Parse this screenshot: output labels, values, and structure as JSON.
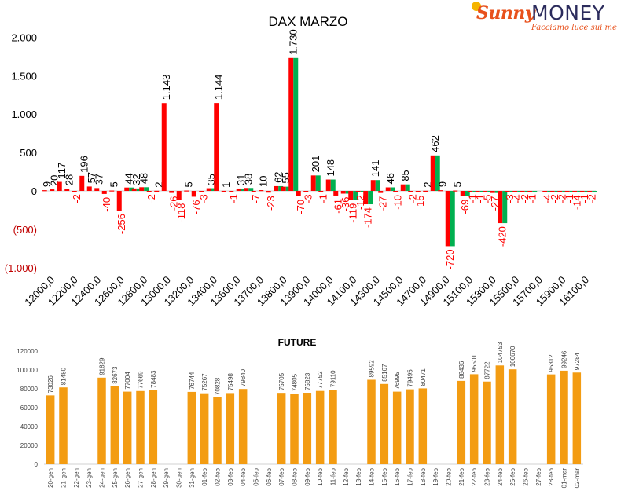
{
  "logo": {
    "brand_script": "Sunny",
    "brand_word": "MONEY",
    "tagline": "Facciamo luce sui mercati"
  },
  "colors": {
    "positive": "#00b050",
    "negative": "#ff0000",
    "future_bar": "#f39c12",
    "neg_axis_label": "#c00000"
  },
  "chart_data": [
    {
      "type": "bar",
      "title": "DAX MARZO",
      "ylim": [
        -1000,
        2000
      ],
      "yticks": [
        {
          "v": 2000,
          "label": "2.000",
          "color": "#000000"
        },
        {
          "v": 1500,
          "label": "1.500",
          "color": "#000000"
        },
        {
          "v": 1000,
          "label": "1.000",
          "color": "#000000"
        },
        {
          "v": 500,
          "label": "500",
          "color": "#000000"
        },
        {
          "v": 0,
          "label": "0",
          "color": "#000000"
        },
        {
          "v": -500,
          "label": "(500)",
          "color": "#c00000"
        },
        {
          "v": -1000,
          "label": "(1.000)",
          "color": "#c00000"
        }
      ],
      "xtick_labels": [
        "12000,0",
        "12200,0",
        "12400,0",
        "12600,0",
        "12800,0",
        "13000,0",
        "13200,0",
        "13400,0",
        "13600,0",
        "13700,0",
        "13800,0",
        "13900,0",
        "14000,0",
        "14100,0",
        "14300,0",
        "14500,0",
        "14700,0",
        "14900,0",
        "15100,0",
        "15300,0",
        "15500,0",
        "15700,0",
        "15900,0",
        "16100,0"
      ],
      "series": [
        {
          "values": [
            9,
            20,
            117,
            28,
            -2,
            196,
            57,
            37,
            -40,
            5,
            -256,
            44,
            32,
            48,
            -2,
            2,
            1143,
            -26,
            -118,
            5,
            -76,
            -3,
            35,
            1144,
            1,
            -1,
            31,
            38,
            -7,
            10,
            -23,
            62,
            55,
            1730,
            -70,
            -3,
            201,
            -1,
            148,
            -61,
            -36,
            -119,
            -12,
            -174,
            141,
            -27,
            46,
            -10,
            85,
            -2,
            -15,
            2,
            462,
            9,
            -720,
            5,
            -69,
            -1,
            -1,
            -5,
            -27,
            -420,
            -3,
            -4,
            -2,
            -1,
            0,
            -4,
            -2,
            -2,
            -1,
            -14,
            -1,
            -2
          ]
        },
        {
          "values": [
            0,
            0,
            0,
            0,
            0,
            0,
            0,
            0,
            0,
            0,
            0,
            44,
            32,
            48,
            0,
            0,
            0,
            0,
            0,
            0,
            0,
            0,
            35,
            0,
            0,
            0,
            31,
            38,
            0,
            0,
            0,
            62,
            55,
            1730,
            0,
            0,
            201,
            0,
            148,
            0,
            -36,
            -119,
            -12,
            -174,
            141,
            0,
            46,
            0,
            85,
            0,
            0,
            0,
            462,
            0,
            -720,
            0,
            -69,
            -1,
            -1,
            -5,
            -27,
            -420,
            -3,
            -4,
            -2,
            -1,
            0,
            -4,
            -2,
            -2,
            -1,
            -14,
            -1,
            -2
          ]
        }
      ],
      "data_labels": [
        "9",
        "20",
        "117",
        "28",
        "-2",
        "196",
        "57",
        "37",
        "-40",
        "5",
        "-256",
        "44",
        "32",
        "48",
        "-2",
        "2",
        "1.143",
        "-26",
        "-118",
        "5",
        "-76",
        "-3",
        "35",
        "1.144",
        "1",
        "-1",
        "31",
        "38",
        "-7",
        "10",
        "-23",
        "62",
        "55",
        "1.730",
        "-70",
        "-3",
        "201",
        "-1",
        "148",
        "-61",
        "-36",
        "-119",
        "-12",
        "-174",
        "141",
        "-27",
        "46",
        "-10",
        "85",
        "-2",
        "-15",
        "2",
        "462",
        "9",
        "-720",
        "5",
        "-69",
        "-1",
        "-1",
        "-5",
        "-27",
        "-420",
        "-3",
        "-4",
        "-2",
        "-1",
        "",
        "-4",
        "-2",
        "-2",
        "-1",
        "-14",
        "-1",
        "-2"
      ]
    },
    {
      "type": "bar",
      "title": "FUTURE",
      "ylim": [
        0,
        120000
      ],
      "yticks": [
        0,
        20000,
        40000,
        60000,
        80000,
        100000,
        120000
      ],
      "categories": [
        "20-gen",
        "21-gen",
        "22-gen",
        "23-gen",
        "24-gen",
        "25-gen",
        "26-gen",
        "27-gen",
        "28-gen",
        "29-gen",
        "30-gen",
        "31-gen",
        "01-feb",
        "02-feb",
        "03-feb",
        "04-feb",
        "05-feb",
        "06-feb",
        "07-feb",
        "08-feb",
        "09-feb",
        "10-feb",
        "11-feb",
        "12-feb",
        "13-feb",
        "14-feb",
        "15-feb",
        "16-feb",
        "17-feb",
        "18-feb",
        "19-feb",
        "20-feb",
        "21-feb",
        "22-feb",
        "23-feb",
        "24-feb",
        "25-feb",
        "26-feb",
        "27-feb",
        "28-feb",
        "01-mar",
        "02-mar"
      ],
      "values": [
        73026,
        81480,
        null,
        null,
        91829,
        82673,
        77004,
        77669,
        78483,
        null,
        null,
        76744,
        75267,
        70828,
        75498,
        79840,
        null,
        null,
        75705,
        74805,
        75823,
        77752,
        79110,
        null,
        null,
        89592,
        85167,
        76995,
        79495,
        80471,
        null,
        null,
        88436,
        95501,
        87722,
        104753,
        100670,
        null,
        null,
        95312,
        99246,
        97284
      ]
    }
  ]
}
